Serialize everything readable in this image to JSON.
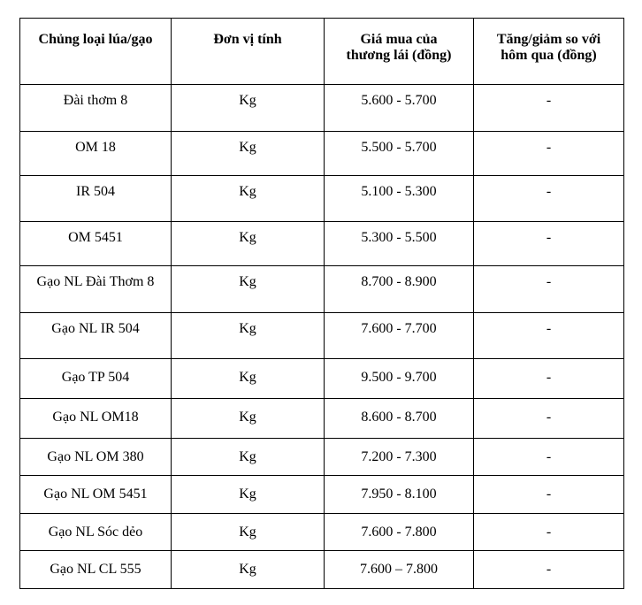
{
  "page": {
    "background": "#ffffff"
  },
  "table": {
    "border_color": "#000000",
    "text_color": "#000000",
    "headers": {
      "type": "Chủng loại lúa/gạo",
      "unit": "Đơn vị tính",
      "price": "Giá mua của\nthương lái (đồng)",
      "change": "Tăng/giảm so với\nhôm qua (đồng)"
    },
    "rows": [
      {
        "name": "Đài thơm 8",
        "unit": "Kg",
        "price": "5.600 - 5.700",
        "change": "-"
      },
      {
        "name": "OM 18",
        "unit": "Kg",
        "price": "5.500 - 5.700",
        "change": "-"
      },
      {
        "name": "IR 504",
        "unit": "Kg",
        "price": "5.100 - 5.300",
        "change": "-"
      },
      {
        "name": "OM 5451",
        "unit": "Kg",
        "price": "5.300 - 5.500",
        "change": "-"
      },
      {
        "name": "Gạo NL Đài Thơm 8",
        "unit": "Kg",
        "price": "8.700 - 8.900",
        "change": "-"
      },
      {
        "name": "Gạo NL IR 504",
        "unit": "Kg",
        "price": "7.600 - 7.700",
        "change": "-"
      },
      {
        "name": "Gạo TP 504",
        "unit": "Kg",
        "price": "9.500 - 9.700",
        "change": "-"
      },
      {
        "name": "Gạo NL OM18",
        "unit": "Kg",
        "price": "8.600 - 8.700",
        "change": "-"
      },
      {
        "name": "Gạo NL OM 380",
        "unit": "Kg",
        "price": "7.200 - 7.300",
        "change": "-"
      },
      {
        "name": "Gạo NL OM 5451",
        "unit": "Kg",
        "price": "7.950 - 8.100",
        "change": "-"
      },
      {
        "name": "Gạo NL Sóc dẻo",
        "unit": "Kg",
        "price": "7.600 - 7.800",
        "change": "-"
      },
      {
        "name": "Gạo NL CL 555",
        "unit": "Kg",
        "price": "7.600 – 7.800",
        "change": "-"
      }
    ]
  }
}
